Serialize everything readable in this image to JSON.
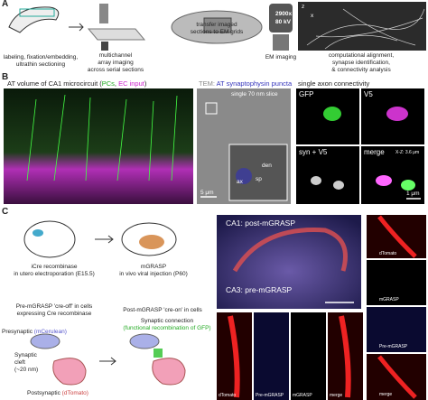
{
  "panel_a": {
    "label": "A",
    "step1": [
      "labeling, fixation/embedding,",
      "ultrathin sectioning"
    ],
    "step2": [
      "multichannel",
      "array imaging",
      "across serial sections"
    ],
    "step3": [
      "transfer imaged",
      "sections to EM grids"
    ],
    "em_settings": [
      "2900x",
      "80 kV"
    ],
    "step4": "EM imaging",
    "step5": [
      "computational alignment,",
      "synapse identification,",
      "& connectivity analysis"
    ],
    "axes": [
      "z",
      "x"
    ]
  },
  "panel_b": {
    "label": "B",
    "left_title": [
      "AT volume of CA1 microcircuit (",
      "PCs",
      ", ",
      "EC input",
      ")"
    ],
    "middle_title": [
      "TEM: ",
      "AT synaptophysin puncta"
    ],
    "slice_label": "single 70 nm slice",
    "inset_labels": [
      "den",
      "sp",
      "ax"
    ],
    "scale_middle": "5 μm",
    "right_title": "single axon connectivity",
    "channels": [
      "GFP",
      "V5",
      "syn + V5",
      "merge"
    ],
    "xz": "X-Z: 3.6 μm",
    "scale_right": "1 μm"
  },
  "panel_c": {
    "label": "C",
    "step1": [
      "iCre recombinase",
      "in utero electroporation (E15.5)"
    ],
    "step2": [
      "mGRASP",
      "in vivo viral injection (P60)"
    ],
    "pre_title": [
      "Pre-mGRASP 'cre-off' in cells",
      "expressing Cre recombinase"
    ],
    "post_title": "Post-mGRASP 'cre-on' in cells",
    "connection": [
      "Synaptic connection",
      "(functional recombination of GFP)"
    ],
    "presynaptic": [
      "Presynaptic ",
      "(mCerulean)"
    ],
    "cleft": [
      "Synaptic",
      "cleft",
      "(~20 nm)"
    ],
    "postsynaptic": [
      "Postsynaptic ",
      "(dTomato)"
    ],
    "hippo_labels": [
      "CA1: post-mGRASP",
      "CA3: pre-mGRASP"
    ],
    "bottom_labels": [
      "dTomato",
      "Pre-mGRASP",
      "mGRASP",
      "merge"
    ],
    "right_labels": [
      "dTomato",
      "mGRASP",
      "Pre-mGRASP",
      "merge"
    ]
  }
}
